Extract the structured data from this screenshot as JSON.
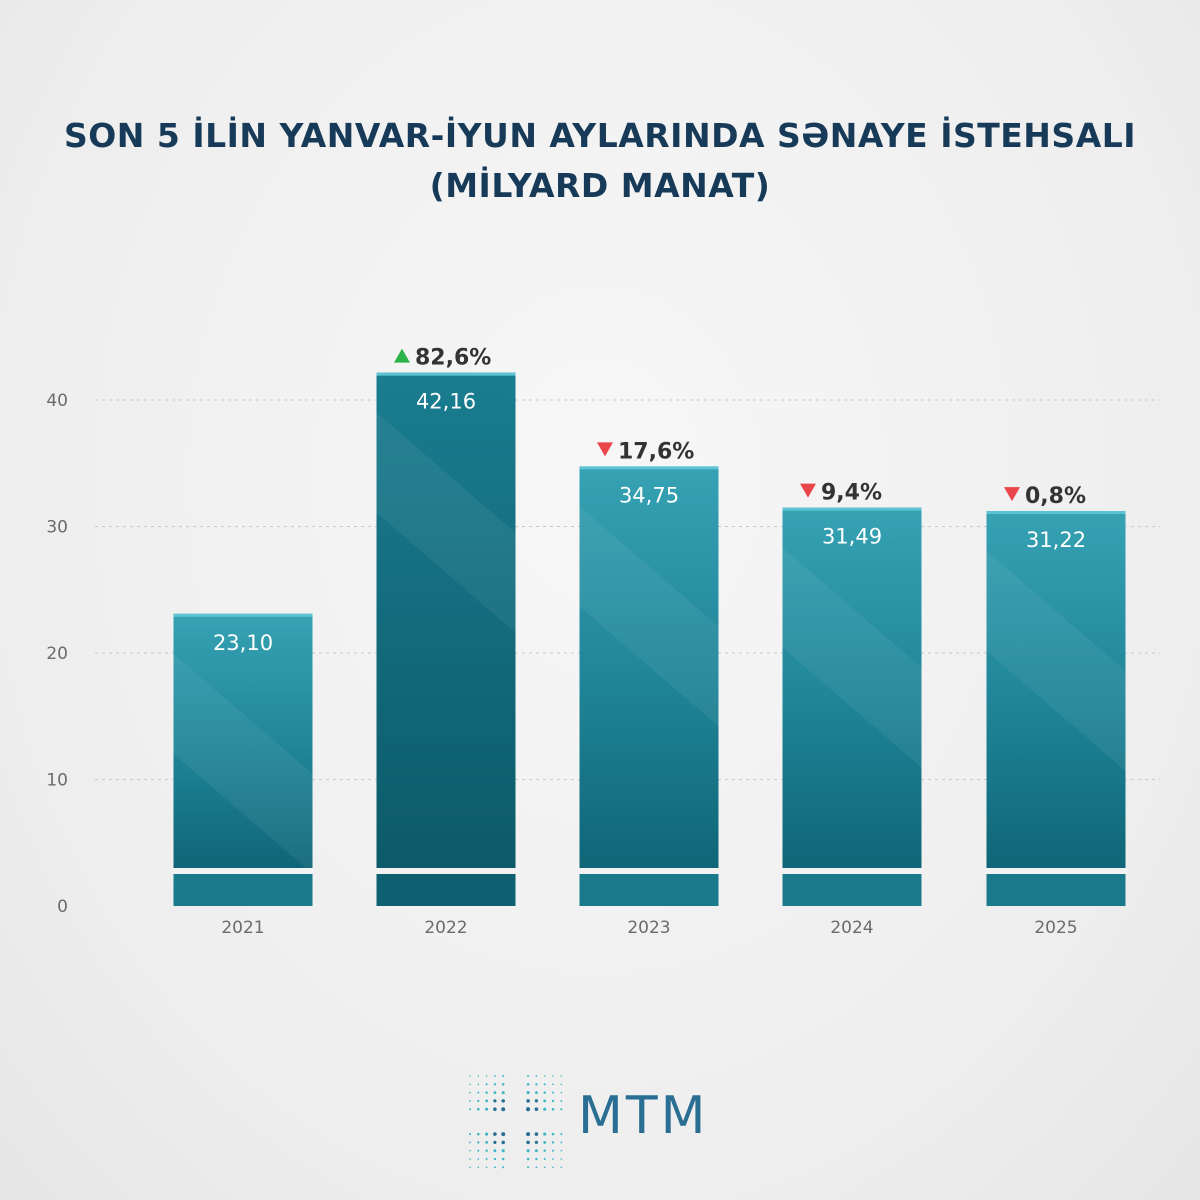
{
  "title": {
    "line1": "SON 5 İLİN YANVAR-İYUN AYLARINDA SƏNAYE İSTEHSALI",
    "line2": "(MİLYARD MANAT)"
  },
  "brand": {
    "name": "MTM",
    "icon": "mtm-logo-icon"
  },
  "colors": {
    "title": "#163a57",
    "bar_light": "#3aa8b8",
    "bar_dark": "#0f6a7c",
    "increase": "#2db34a",
    "decrease": "#e8464a",
    "axis_text": "#6b6b6b"
  },
  "chart_data": {
    "type": "bar",
    "categories": [
      "2021",
      "2022",
      "2023",
      "2024",
      "2025"
    ],
    "values": [
      23.1,
      42.16,
      34.75,
      31.49,
      31.22
    ],
    "value_labels": [
      "23,10",
      "42,16",
      "34,75",
      "31,49",
      "31,22"
    ],
    "changes": [
      null,
      {
        "direction": "up",
        "label": "82,6%"
      },
      {
        "direction": "down",
        "label": "17,6%"
      },
      {
        "direction": "down",
        "label": "9,4%"
      },
      {
        "direction": "down",
        "label": "0,8%"
      }
    ],
    "yticks": [
      0,
      10,
      20,
      30,
      40
    ],
    "ylim": [
      0,
      45
    ],
    "grid": true,
    "axis_break": true
  }
}
